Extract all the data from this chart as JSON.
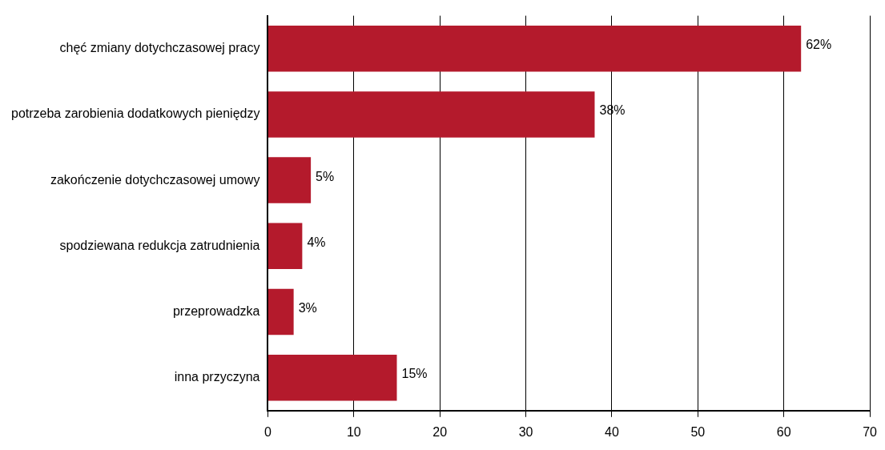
{
  "chart_data": {
    "type": "bar",
    "orientation": "horizontal",
    "categories": [
      "chęć zmiany dotychczasowej pracy",
      "potrzeba zarobienia dodatkowych pieniędzy",
      "zakończenie dotychczasowej umowy",
      "spodziewana redukcja zatrudnienia",
      "przeprowadzka",
      "inna przyczyna"
    ],
    "values": [
      62,
      38,
      5,
      4,
      3,
      15
    ],
    "value_labels": [
      "62%",
      "38%",
      "5%",
      "4%",
      "3%",
      "15%"
    ],
    "color": "#b41a2c",
    "xlim": [
      0,
      70
    ],
    "xticks": [
      0,
      10,
      20,
      30,
      40,
      50,
      60,
      70
    ],
    "grid": "x"
  }
}
